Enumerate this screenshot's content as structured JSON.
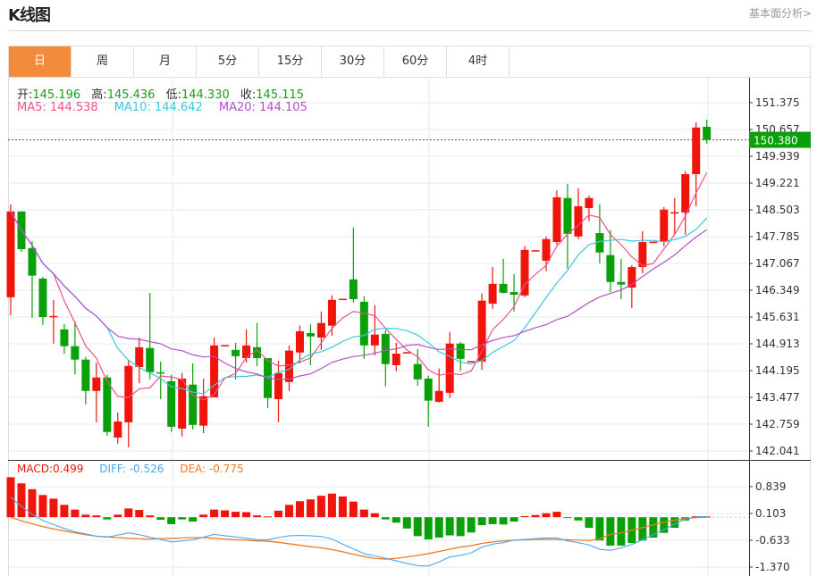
{
  "header": {
    "title": "K线图",
    "fundamental_link": "基本面分析>"
  },
  "tabs": [
    {
      "label": "日",
      "active": true
    },
    {
      "label": "周"
    },
    {
      "label": "月"
    },
    {
      "label": "5分"
    },
    {
      "label": "15分"
    },
    {
      "label": "30分"
    },
    {
      "label": "60分"
    },
    {
      "label": "4时"
    }
  ],
  "ohlc_info": {
    "open_label": "开:",
    "open": "145.196",
    "high_label": "高:",
    "high": "145.436",
    "low_label": "低:",
    "low": "144.330",
    "close_label": "收:",
    "close": "145.115"
  },
  "ma_info": {
    "ma5": "MA5: 144.538",
    "ma10": "MA10: 144.642",
    "ma20": "MA20: 144.105"
  },
  "macd_info": {
    "macd": "MACD:0.499",
    "diff": "DIFF: -0.526",
    "dea": "DEA: -0.775"
  },
  "colors": {
    "up": "#f0140a",
    "down": "#0aa00a",
    "ma5": "#f0508c",
    "ma10": "#3cc8dc",
    "ma20": "#b450c8",
    "diff": "#4aa8f0",
    "dea": "#f07820",
    "active_tab": "#f28c3c"
  },
  "chart_data": [
    {
      "type": "candlestick",
      "price_ticks": [
        "151.375",
        "150.657",
        "149.939",
        "149.221",
        "148.503",
        "147.785",
        "147.067",
        "146.349",
        "145.631",
        "144.913",
        "144.195",
        "143.477",
        "142.759",
        "142.041"
      ],
      "ylim": [
        142.041,
        151.375
      ],
      "current_price": "150.380",
      "candles": [
        [
          146.16,
          148.65,
          145.68,
          148.46
        ],
        [
          148.46,
          148.46,
          147.38,
          147.45
        ],
        [
          147.48,
          147.67,
          145.61,
          146.74
        ],
        [
          146.66,
          146.71,
          145.42,
          145.63
        ],
        [
          145.63,
          146.09,
          144.92,
          145.66
        ],
        [
          145.3,
          145.44,
          144.65,
          144.85
        ],
        [
          144.85,
          145.52,
          144.1,
          144.49
        ],
        [
          144.49,
          144.56,
          143.29,
          143.65
        ],
        [
          143.65,
          144.41,
          142.81,
          144.01
        ],
        [
          144.01,
          144.08,
          142.45,
          142.55
        ],
        [
          142.4,
          143.07,
          142.24,
          142.83
        ],
        [
          142.81,
          144.49,
          142.14,
          144.32
        ],
        [
          144.29,
          145.08,
          143.86,
          144.82
        ],
        [
          144.8,
          146.28,
          143.96,
          144.15
        ],
        [
          144.15,
          144.44,
          143.43,
          144.13
        ],
        [
          143.91,
          144.08,
          142.55,
          142.69
        ],
        [
          142.64,
          144.13,
          142.43,
          143.98
        ],
        [
          143.82,
          144.39,
          142.62,
          142.74
        ],
        [
          142.72,
          143.98,
          142.52,
          143.51
        ],
        [
          143.48,
          145.08,
          143.48,
          144.87
        ],
        [
          144.87,
          144.88,
          144.87,
          144.88
        ],
        [
          144.75,
          144.94,
          143.96,
          144.58
        ],
        [
          144.53,
          145.3,
          144.41,
          144.87
        ],
        [
          144.82,
          145.47,
          144.32,
          144.53
        ],
        [
          144.53,
          144.53,
          143.19,
          143.46
        ],
        [
          143.43,
          144.46,
          142.81,
          144.13
        ],
        [
          143.89,
          144.87,
          143.65,
          144.73
        ],
        [
          144.68,
          145.4,
          144.39,
          145.25
        ],
        [
          145.2,
          145.44,
          144.34,
          145.11
        ],
        [
          145.08,
          145.78,
          144.75,
          145.47
        ],
        [
          145.4,
          146.21,
          145.13,
          146.09
        ],
        [
          146.11,
          146.12,
          146.11,
          146.12
        ],
        [
          146.64,
          148.03,
          146.02,
          146.11
        ],
        [
          146.04,
          146.19,
          144.51,
          144.87
        ],
        [
          144.87,
          145.95,
          144.61,
          145.16
        ],
        [
          145.18,
          145.28,
          143.77,
          144.37
        ],
        [
          144.34,
          144.94,
          144.18,
          144.65
        ],
        [
          144.68,
          144.69,
          144.68,
          144.69
        ],
        [
          144.37,
          144.77,
          143.79,
          143.96
        ],
        [
          143.98,
          144.06,
          142.69,
          143.39
        ],
        [
          143.36,
          144.25,
          143.34,
          143.65
        ],
        [
          143.6,
          145.23,
          143.46,
          144.92
        ],
        [
          144.92,
          144.96,
          144.18,
          144.51
        ],
        [
          144.44,
          144.45,
          144.44,
          144.45
        ],
        [
          144.44,
          146.26,
          144.22,
          146.07
        ],
        [
          145.99,
          146.97,
          145.85,
          146.52
        ],
        [
          146.52,
          147.19,
          146.26,
          146.28
        ],
        [
          146.3,
          146.78,
          145.78,
          146.23
        ],
        [
          146.21,
          147.53,
          146.16,
          147.43
        ],
        [
          147.41,
          147.42,
          147.41,
          147.42
        ],
        [
          147.14,
          147.79,
          146.86,
          147.72
        ],
        [
          147.64,
          149.03,
          147.57,
          148.84
        ],
        [
          148.82,
          149.2,
          146.93,
          147.86
        ],
        [
          147.79,
          149.08,
          147.72,
          148.6
        ],
        [
          148.55,
          148.89,
          148.2,
          148.82
        ],
        [
          147.88,
          148.65,
          147.07,
          147.36
        ],
        [
          147.29,
          147.96,
          146.3,
          146.57
        ],
        [
          146.57,
          147.19,
          146.11,
          146.5
        ],
        [
          146.42,
          147.02,
          145.87,
          146.97
        ],
        [
          146.97,
          147.93,
          146.81,
          147.64
        ],
        [
          147.64,
          147.65,
          147.64,
          147.65
        ],
        [
          147.64,
          148.58,
          147.53,
          148.51
        ],
        [
          148.43,
          148.82,
          147.86,
          148.44
        ],
        [
          148.43,
          149.54,
          147.84,
          149.46
        ],
        [
          149.46,
          150.85,
          148.6,
          150.71
        ],
        [
          150.73,
          150.92,
          150.28,
          150.38
        ]
      ]
    },
    {
      "type": "macd",
      "ticks": [
        "0.839",
        "0.103",
        "-0.633",
        "-1.370"
      ],
      "ylim": [
        -1.37,
        1.2
      ],
      "histogram": [
        1.1,
        0.93,
        0.77,
        0.61,
        0.51,
        0.34,
        0.21,
        0.07,
        0.05,
        -0.06,
        0.07,
        0.24,
        0.2,
        0.05,
        -0.07,
        -0.19,
        -0.06,
        -0.12,
        0.07,
        0.21,
        0.19,
        0.15,
        0.14,
        0.05,
        0.02,
        0.18,
        0.34,
        0.44,
        0.49,
        0.59,
        0.65,
        0.57,
        0.43,
        0.21,
        0.11,
        -0.06,
        -0.15,
        -0.31,
        -0.52,
        -0.61,
        -0.56,
        -0.5,
        -0.52,
        -0.42,
        -0.22,
        -0.19,
        -0.2,
        -0.12,
        0.03,
        0.06,
        0.11,
        0.15,
        -0.02,
        -0.09,
        -0.29,
        -0.64,
        -0.78,
        -0.78,
        -0.71,
        -0.64,
        -0.56,
        -0.43,
        -0.29,
        -0.09,
        0.03,
        0.02
      ],
      "diff": [
        0.55,
        0.3,
        0.08,
        -0.09,
        -0.2,
        -0.31,
        -0.4,
        -0.46,
        -0.52,
        -0.55,
        -0.49,
        -0.43,
        -0.48,
        -0.55,
        -0.61,
        -0.68,
        -0.65,
        -0.62,
        -0.55,
        -0.47,
        -0.51,
        -0.54,
        -0.58,
        -0.62,
        -0.62,
        -0.56,
        -0.51,
        -0.5,
        -0.51,
        -0.53,
        -0.6,
        -0.74,
        -0.87,
        -1.0,
        -1.06,
        -1.13,
        -1.2,
        -1.27,
        -1.33,
        -1.34,
        -1.23,
        -1.09,
        -1.05,
        -0.98,
        -0.82,
        -0.74,
        -0.7,
        -0.63,
        -0.61,
        -0.59,
        -0.57,
        -0.57,
        -0.65,
        -0.7,
        -0.76,
        -0.88,
        -0.91,
        -0.84,
        -0.75,
        -0.62,
        -0.48,
        -0.34,
        -0.19,
        -0.05,
        0.01,
        0.02
      ],
      "dea": [
        0.0,
        -0.1,
        -0.18,
        -0.26,
        -0.32,
        -0.38,
        -0.43,
        -0.48,
        -0.52,
        -0.54,
        -0.56,
        -0.58,
        -0.59,
        -0.6,
        -0.59,
        -0.58,
        -0.57,
        -0.56,
        -0.56,
        -0.58,
        -0.6,
        -0.62,
        -0.63,
        -0.65,
        -0.66,
        -0.69,
        -0.73,
        -0.77,
        -0.81,
        -0.84,
        -0.89,
        -0.95,
        -1.02,
        -1.08,
        -1.13,
        -1.15,
        -1.13,
        -1.09,
        -1.05,
        -1.0,
        -0.94,
        -0.88,
        -0.82,
        -0.78,
        -0.72,
        -0.68,
        -0.65,
        -0.63,
        -0.62,
        -0.61,
        -0.61,
        -0.61,
        -0.62,
        -0.63,
        -0.64,
        -0.6,
        -0.47,
        -0.43,
        -0.36,
        -0.28,
        -0.21,
        -0.14,
        -0.08,
        -0.04,
        -0.01,
        0.0
      ]
    }
  ]
}
